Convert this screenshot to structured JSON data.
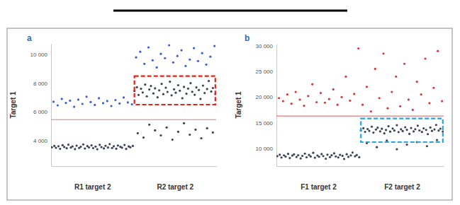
{
  "chart_data": [
    {
      "type": "scatter",
      "panel_label": "a",
      "y_label": "Target 1",
      "xlim": [
        0,
        2
      ],
      "xticks": [
        {
          "value": 0.5,
          "label": "R1 target 2"
        },
        {
          "value": 1.5,
          "label": "R2 target 2"
        }
      ],
      "ylim": [
        2200,
        10750
      ],
      "yticks": [
        {
          "value": 4000,
          "label": "4 000"
        },
        {
          "value": 6000,
          "label": "6 000"
        },
        {
          "value": 8000,
          "label": "8 000"
        },
        {
          "value": 10000,
          "label": "10 000"
        }
      ],
      "threshold": 5450,
      "highlight": {
        "xlim": [
          1.01,
          1.99
        ],
        "ylim": [
          6500,
          8500
        ],
        "color": "#e3241b"
      },
      "series": [
        {
          "color": "#3d4352",
          "x": [
            0.01,
            0.04,
            0.06,
            0.09,
            0.11,
            0.14,
            0.16,
            0.19,
            0.21,
            0.24,
            0.26,
            0.29,
            0.31,
            0.34,
            0.36,
            0.39,
            0.41,
            0.44,
            0.46,
            0.49,
            0.51,
            0.54,
            0.56,
            0.59,
            0.61,
            0.64,
            0.66,
            0.69,
            0.71,
            0.74,
            0.76,
            0.79,
            0.81,
            0.84,
            0.86,
            0.89,
            0.91,
            0.94,
            0.96,
            0.99
          ],
          "values": [
            3520,
            3610,
            3480,
            3590,
            3410,
            3660,
            3540,
            3450,
            3700,
            3500,
            3580,
            3390,
            3630,
            3470,
            3560,
            3720,
            3430,
            3600,
            3510,
            3650,
            3460,
            3570,
            3380,
            3690,
            3530,
            3440,
            3620,
            3500,
            3740,
            3470,
            3590,
            3420,
            3640,
            3550,
            3490,
            3680,
            3400,
            3580,
            3520,
            3610
          ]
        },
        {
          "color": "#3d4352",
          "x": [
            1.01,
            1.04,
            1.06,
            1.09,
            1.11,
            1.14,
            1.16,
            1.19,
            1.21,
            1.24,
            1.26,
            1.29,
            1.31,
            1.34,
            1.36,
            1.39,
            1.41,
            1.44,
            1.46,
            1.49,
            1.51,
            1.54,
            1.56,
            1.59,
            1.61,
            1.64,
            1.66,
            1.69,
            1.71,
            1.74,
            1.76,
            1.79,
            1.81,
            1.84,
            1.86,
            1.89,
            1.91,
            1.94,
            1.96,
            1.99
          ],
          "values": [
            7450,
            7720,
            7180,
            7610,
            7350,
            7900,
            7080,
            7560,
            7800,
            7280,
            7640,
            7010,
            7500,
            7950,
            7230,
            7680,
            7390,
            8100,
            7150,
            7570,
            7330,
            7860,
            7470,
            6950,
            7740,
            7260,
            7620,
            8000,
            7400,
            7190,
            7700,
            7520,
            6900,
            7830,
            7310,
            7590,
            8150,
            7420,
            7660,
            7240
          ]
        },
        {
          "color": "#3d4352",
          "x": [
            1.05,
            1.12,
            1.19,
            1.26,
            1.33,
            1.4,
            1.47,
            1.54,
            1.61,
            1.68,
            1.75,
            1.82,
            1.89,
            1.96
          ],
          "values": [
            4500,
            4200,
            5100,
            4700,
            4350,
            4900,
            4050,
            4600,
            5200,
            4400,
            4750,
            4150,
            4850,
            4550
          ]
        },
        {
          "color": "#3b5fd0",
          "x": [
            0.03,
            0.08,
            0.13,
            0.18,
            0.23,
            0.28,
            0.33,
            0.38,
            0.43,
            0.48,
            0.53,
            0.58,
            0.63,
            0.68,
            0.73,
            0.78,
            0.83,
            0.88,
            0.93,
            0.98
          ],
          "values": [
            6700,
            6450,
            6900,
            6620,
            6780,
            6350,
            6850,
            6550,
            7050,
            6680,
            6480,
            6950,
            6600,
            6750,
            6400,
            6820,
            6580,
            7000,
            6650,
            6520
          ]
        },
        {
          "color": "#3b5fd0",
          "x": [
            1.03,
            1.08,
            1.13,
            1.18,
            1.23,
            1.28,
            1.33,
            1.38,
            1.43,
            1.48,
            1.53,
            1.58,
            1.63,
            1.68,
            1.73,
            1.78,
            1.83,
            1.88,
            1.93,
            1.98
          ],
          "values": [
            9800,
            10200,
            9350,
            10500,
            9600,
            9100,
            10050,
            9750,
            10650,
            9450,
            9900,
            10300,
            9200,
            9650,
            10450,
            9550,
            10100,
            9300,
            9850,
            10600
          ]
        }
      ]
    },
    {
      "type": "scatter",
      "panel_label": "b",
      "y_label": "Target 1",
      "xlim": [
        0,
        2
      ],
      "xticks": [
        {
          "value": 0.5,
          "label": "F1 target 2"
        },
        {
          "value": 1.5,
          "label": "F2 target 2"
        }
      ],
      "ylim": [
        6500,
        30400
      ],
      "yticks": [
        {
          "value": 10000,
          "label": "10 000"
        },
        {
          "value": 15000,
          "label": "15 000"
        },
        {
          "value": 20000,
          "label": "20 000"
        },
        {
          "value": 25000,
          "label": "25 000"
        },
        {
          "value": 30000,
          "label": "30 000"
        }
      ],
      "threshold": 16300,
      "highlight": {
        "xlim": [
          1.01,
          1.99
        ],
        "ylim": [
          11200,
          15800
        ],
        "color": "#2ba3dc"
      },
      "series": [
        {
          "color": "#3d4352",
          "x": [
            0.01,
            0.04,
            0.06,
            0.09,
            0.11,
            0.14,
            0.16,
            0.19,
            0.21,
            0.24,
            0.26,
            0.29,
            0.31,
            0.34,
            0.36,
            0.39,
            0.41,
            0.44,
            0.46,
            0.49,
            0.51,
            0.54,
            0.56,
            0.59,
            0.61,
            0.64,
            0.66,
            0.69,
            0.71,
            0.74,
            0.76,
            0.79,
            0.81,
            0.84,
            0.86,
            0.89,
            0.91,
            0.94,
            0.96,
            0.99
          ],
          "values": [
            8450,
            8720,
            8180,
            8610,
            8350,
            8900,
            8080,
            8560,
            8800,
            8280,
            8640,
            8010,
            8500,
            8950,
            8230,
            8680,
            8390,
            9100,
            8150,
            8570,
            8330,
            8860,
            8470,
            7950,
            8740,
            8260,
            8620,
            9000,
            8400,
            8190,
            8700,
            8520,
            7900,
            8830,
            8310,
            8590,
            9150,
            8420,
            8660,
            8240
          ]
        },
        {
          "color": "#3d4352",
          "x": [
            1.01,
            1.04,
            1.06,
            1.09,
            1.11,
            1.14,
            1.16,
            1.19,
            1.21,
            1.24,
            1.26,
            1.29,
            1.31,
            1.34,
            1.36,
            1.39,
            1.41,
            1.44,
            1.46,
            1.49,
            1.51,
            1.54,
            1.56,
            1.59,
            1.61,
            1.64,
            1.66,
            1.69,
            1.71,
            1.74,
            1.76,
            1.79,
            1.81,
            1.84,
            1.86,
            1.89,
            1.91,
            1.94,
            1.96,
            1.99
          ],
          "values": [
            13500,
            13900,
            13200,
            13750,
            13400,
            14200,
            13050,
            13650,
            14000,
            13300,
            13800,
            12900,
            13550,
            14300,
            13250,
            13850,
            13450,
            14500,
            13150,
            13700,
            13350,
            14100,
            13600,
            12800,
            13950,
            13280,
            13720,
            14400,
            13480,
            13180,
            13880,
            13580,
            12750,
            14050,
            13380,
            13680,
            14550,
            13450,
            13820,
            13260
          ]
        },
        {
          "color": "#3d4352",
          "x": [
            1.08,
            1.2,
            1.32,
            1.44,
            1.56,
            1.68,
            1.8,
            1.92
          ],
          "values": [
            11000,
            10200,
            11500,
            9800,
            10700,
            11200,
            10400,
            11600
          ]
        },
        {
          "color": "#d63a3a",
          "x": [
            0.03,
            0.08,
            0.13,
            0.18,
            0.23,
            0.28,
            0.33,
            0.38,
            0.43,
            0.48,
            0.53,
            0.58,
            0.63,
            0.68,
            0.73,
            0.78,
            0.83,
            0.88,
            0.93,
            0.98
          ],
          "values": [
            19800,
            19200,
            20500,
            18700,
            21000,
            19500,
            18300,
            20200,
            22500,
            19000,
            20800,
            18900,
            19600,
            21500,
            18500,
            20000,
            24000,
            19300,
            20600,
            29500
          ]
        },
        {
          "color": "#d63a3a",
          "x": [
            1.03,
            1.08,
            1.13,
            1.18,
            1.23,
            1.28,
            1.33,
            1.38,
            1.43,
            1.48,
            1.53,
            1.58,
            1.63,
            1.68,
            1.73,
            1.78,
            1.83,
            1.88,
            1.93,
            1.98
          ],
          "values": [
            18500,
            22000,
            17200,
            25500,
            19800,
            28500,
            17800,
            21000,
            24000,
            18200,
            26500,
            19500,
            17500,
            23000,
            20500,
            27500,
            18800,
            21800,
            29000,
            19200
          ]
        }
      ]
    }
  ]
}
